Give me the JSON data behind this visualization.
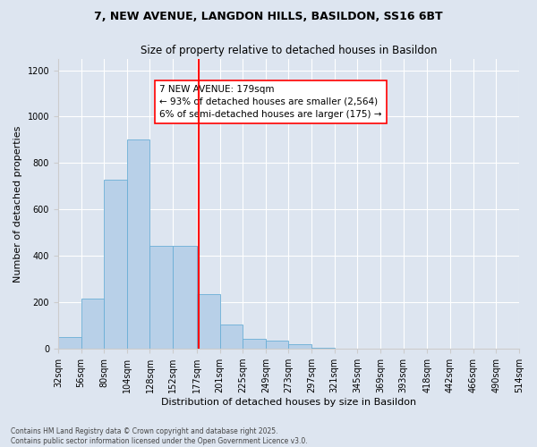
{
  "title_line1": "7, NEW AVENUE, LANGDON HILLS, BASILDON, SS16 6BT",
  "title_line2": "Size of property relative to detached houses in Basildon",
  "xlabel": "Distribution of detached houses by size in Basildon",
  "ylabel": "Number of detached properties",
  "footer": "Contains HM Land Registry data © Crown copyright and database right 2025.\nContains public sector information licensed under the Open Government Licence v3.0.",
  "bin_labels": [
    "32sqm",
    "56sqm",
    "80sqm",
    "104sqm",
    "128sqm",
    "152sqm",
    "177sqm",
    "201sqm",
    "225sqm",
    "249sqm",
    "273sqm",
    "297sqm",
    "321sqm",
    "345sqm",
    "369sqm",
    "393sqm",
    "418sqm",
    "442sqm",
    "466sqm",
    "490sqm",
    "514sqm"
  ],
  "bin_edges": [
    32,
    56,
    80,
    104,
    128,
    152,
    177,
    201,
    225,
    249,
    273,
    297,
    321,
    345,
    369,
    393,
    418,
    442,
    466,
    490,
    514
  ],
  "bar_heights": [
    50,
    215,
    730,
    900,
    445,
    445,
    235,
    105,
    45,
    35,
    20,
    5,
    2,
    1,
    0,
    0,
    0,
    0,
    0,
    0
  ],
  "property_size": 179,
  "annotation_text": "7 NEW AVENUE: 179sqm\n← 93% of detached houses are smaller (2,564)\n6% of semi-detached houses are larger (175) →",
  "bar_color": "#b8d0e8",
  "bar_edge_color": "#6aaed6",
  "vline_color": "red",
  "annotation_box_color": "white",
  "annotation_box_edge": "red",
  "bg_color": "#dde5f0",
  "ylim": [
    0,
    1250
  ],
  "yticks": [
    0,
    200,
    400,
    600,
    800,
    1000,
    1200
  ],
  "title1_fontsize": 9,
  "title2_fontsize": 8.5,
  "xlabel_fontsize": 8,
  "ylabel_fontsize": 8,
  "tick_fontsize": 7,
  "annotation_fontsize": 7.5,
  "footer_fontsize": 5.5
}
